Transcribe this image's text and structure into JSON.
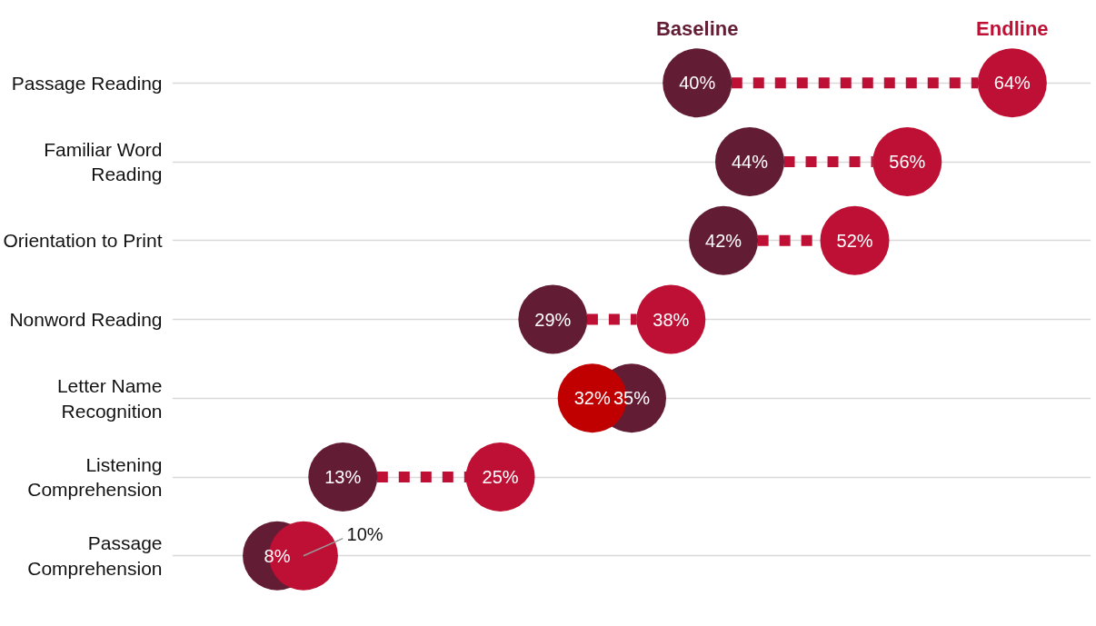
{
  "chart_data": {
    "type": "other",
    "categories": [
      "Passage Reading",
      "Familiar Word Reading",
      "Orientation to Print",
      "Nonword Reading",
      "Letter Name Recognition",
      "Listening Comprehension",
      "Passage Comprehension"
    ],
    "series": [
      {
        "name": "Baseline",
        "color": "#621c34",
        "values": [
          40,
          44,
          42,
          29,
          35,
          13,
          8
        ],
        "value_labels": [
          "40%",
          "44%",
          "42%",
          "29%",
          "35%",
          "13%",
          "8%"
        ]
      },
      {
        "name": "Endline",
        "color": "#be0f34",
        "colors": [
          "#be0f34",
          "#be0f34",
          "#be0f34",
          "#be0f34",
          "#c00000",
          "#be0f34",
          "#be0f34"
        ],
        "values": [
          64,
          56,
          52,
          38,
          32,
          25,
          10
        ],
        "value_labels": [
          "64%",
          "56%",
          "52%",
          "38%",
          "32%",
          "25%",
          "10%"
        ]
      }
    ]
  }
}
